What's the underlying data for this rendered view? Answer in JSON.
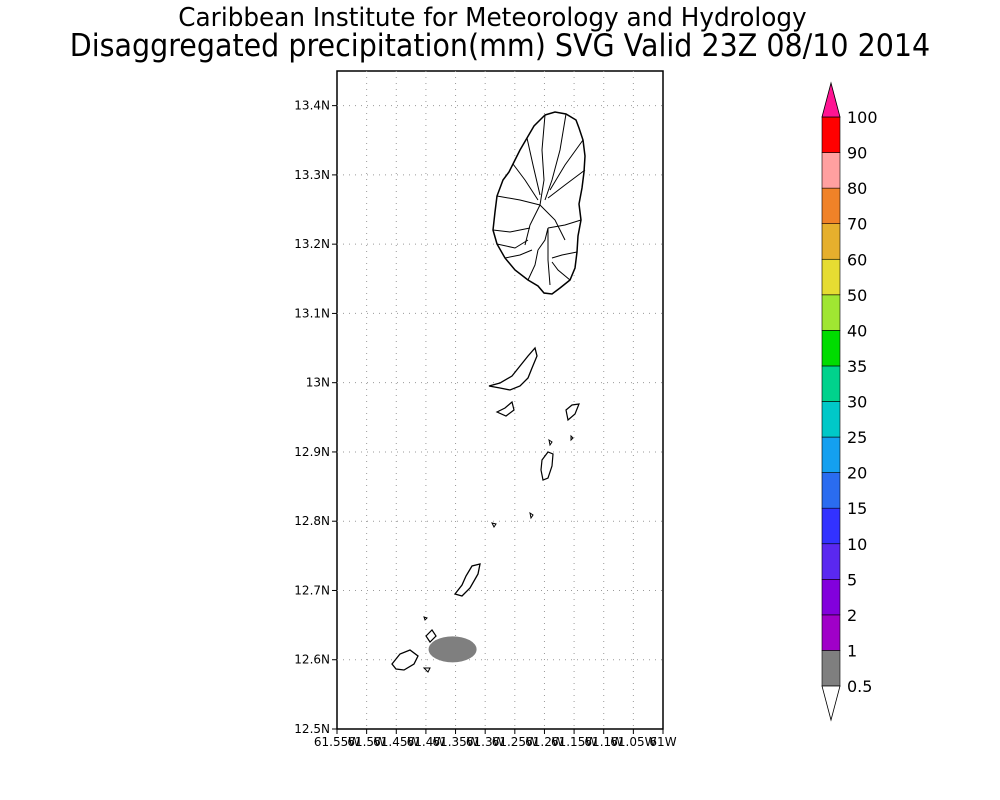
{
  "title": "Caribbean Institute for Meteorology and Hydrology",
  "subtitle": "Disaggregated precipitation(mm) SVG Valid 23Z 08/10 2014",
  "map": {
    "lat_range": [
      12.5,
      13.45
    ],
    "lon_range": [
      -61.55,
      -61.0
    ],
    "y_ticks": [
      "12.5N",
      "12.6N",
      "12.7N",
      "12.8N",
      "12.9N",
      "13N",
      "13.1N",
      "13.2N",
      "13.3N",
      "13.4N"
    ],
    "x_ticks": [
      "61.55W",
      "61.5W",
      "61.45W",
      "61.4W",
      "61.35W",
      "61.3W",
      "61.25W",
      "61.2W",
      "61.15W",
      "61.1W",
      "61.05W",
      "61W"
    ],
    "grid": "dotted",
    "precip_area": {
      "lon": -61.355,
      "lat": 12.615,
      "value_mm": "0.5-1"
    },
    "land_outline_color": "#000000"
  },
  "colorbar": {
    "labels": [
      "0.5",
      "1",
      "2",
      "5",
      "10",
      "15",
      "20",
      "25",
      "30",
      "35",
      "40",
      "50",
      "60",
      "70",
      "80",
      "90",
      "100"
    ],
    "colors": [
      "#7f7f7f",
      "#a000c8",
      "#8200dc",
      "#5a28f0",
      "#3232ff",
      "#2a6cf0",
      "#14a0f0",
      "#00c8c8",
      "#00d28c",
      "#00dc00",
      "#a0e632",
      "#e6dc32",
      "#e6af2d",
      "#f08228",
      "#ffa0a0",
      "#ff0000",
      "#ff3c3c"
    ],
    "under_color": "#ffffff",
    "over_color": "#ff1493"
  }
}
